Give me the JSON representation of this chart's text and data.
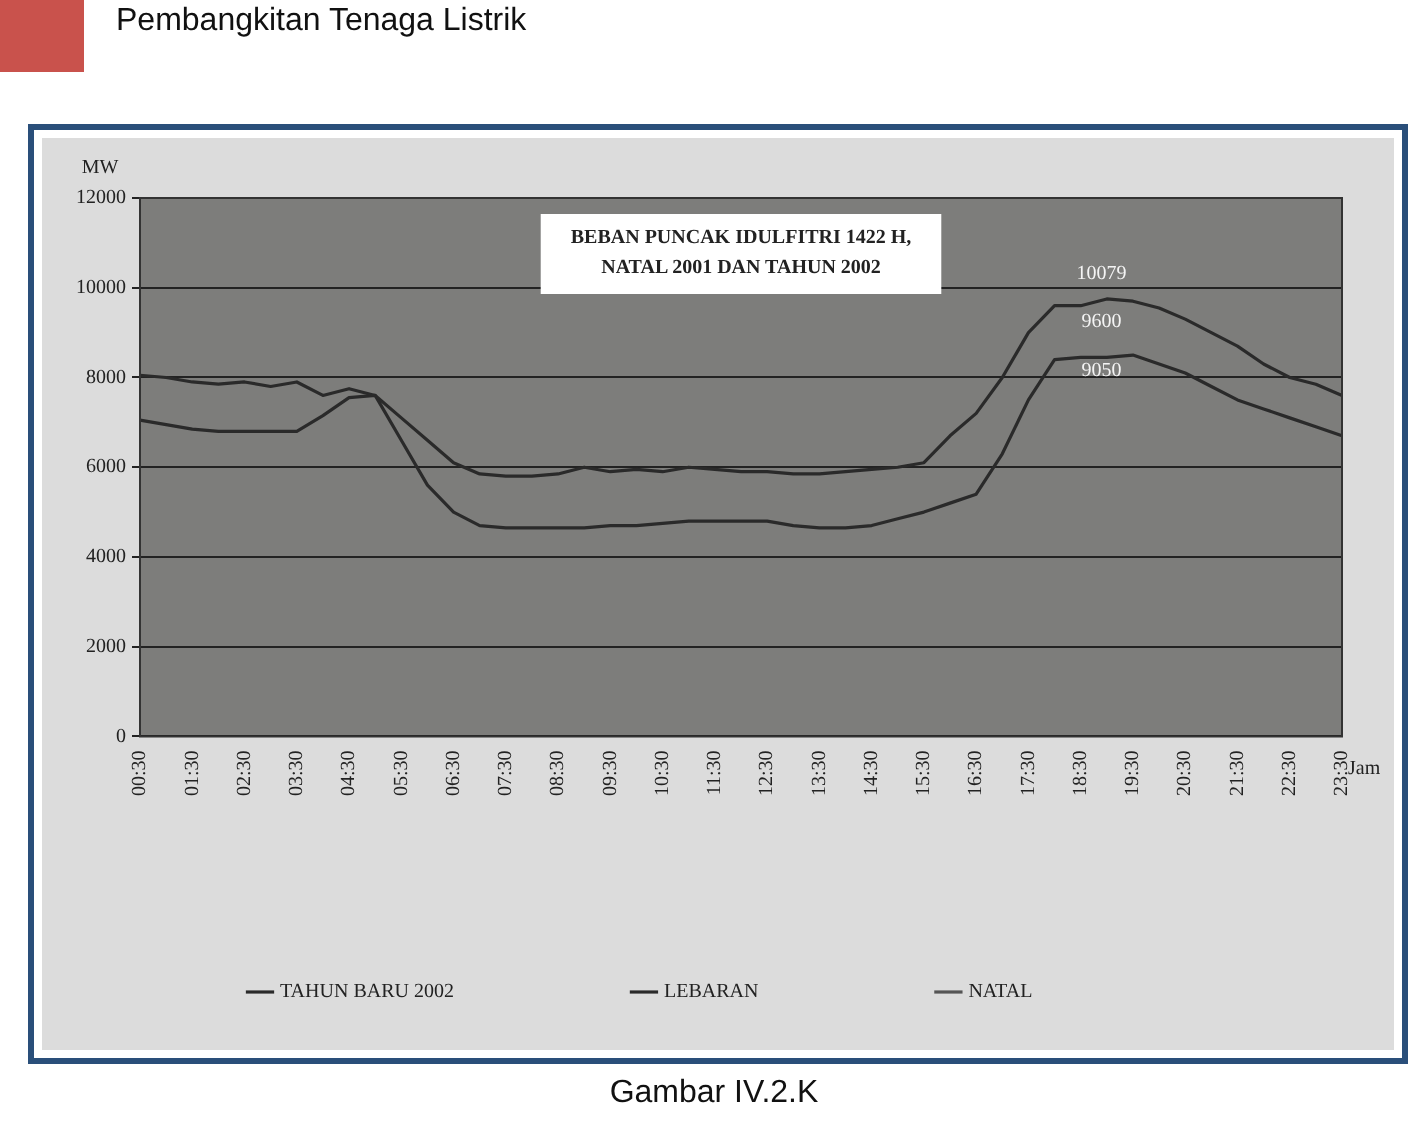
{
  "chart_data": {
    "type": "line",
    "title": "BEBAN PUNCAK IDULFITRI 1422 H,\nNATAL 2001 DAN TAHUN 2002",
    "xlabel": "Jam",
    "ylabel": "MW",
    "categories": [
      "00:30",
      null,
      "01:30",
      null,
      "02:30",
      null,
      "03:30",
      null,
      "04:30",
      null,
      "05:30",
      null,
      "06:30",
      null,
      "07:30",
      null,
      "08:30",
      null,
      "09:30",
      null,
      "10:30",
      null,
      "11:30",
      null,
      "12:30",
      null,
      "13:30",
      null,
      "14:30",
      null,
      "15:30",
      null,
      "16:30",
      null,
      "17:30",
      null,
      "18:30",
      null,
      "19:30",
      null,
      "20:30",
      null,
      "21:30",
      null,
      "22:30",
      null,
      "23:30"
    ],
    "series": [
      {
        "name": "TAHUN BARU 2002",
        "color": "#2a2a2a",
        "values": [
          8050,
          8000,
          7900,
          7850,
          7900,
          7800,
          7900,
          7600,
          7750,
          7600,
          7100,
          6600,
          6100,
          5850,
          5800,
          5800,
          5850,
          6000,
          5900,
          5950,
          5900,
          6000,
          5950,
          5900,
          5900,
          5850,
          5850,
          5900,
          5950,
          6000,
          6100,
          6700,
          7200,
          8000,
          9000,
          9600,
          9600,
          9750,
          9700,
          9550,
          9300,
          9000,
          8700,
          8300,
          8000,
          7850,
          7600
        ]
      },
      {
        "name": "LEBARAN",
        "color": "#2a2a2a",
        "values": [
          7050,
          6950,
          6850,
          6800,
          6800,
          6800,
          6800,
          7150,
          7550,
          7600,
          6600,
          5600,
          5000,
          4700,
          4650,
          4650,
          4650,
          4650,
          4700,
          4700,
          4750,
          4800,
          4800,
          4800,
          4800,
          4700,
          4650,
          4650,
          4700,
          4850,
          5000,
          5200,
          5400,
          6300,
          7500,
          8400,
          8450,
          8450,
          8500,
          8300,
          8100,
          7800,
          7500,
          7300,
          7100,
          6900,
          6700
        ]
      },
      {
        "name": "NATAL",
        "color": "#555555",
        "values": [
          null,
          null,
          null,
          null,
          null,
          null,
          null,
          null,
          null,
          null,
          null,
          null,
          null,
          null,
          null,
          null,
          null,
          null,
          null,
          null,
          null,
          null,
          null,
          null,
          null,
          null,
          null,
          null,
          null,
          null,
          null,
          null,
          null,
          null,
          null,
          null,
          null,
          null,
          null,
          null,
          null,
          null,
          null,
          null,
          null,
          null,
          null
        ]
      }
    ],
    "ylim": [
      0,
      12000
    ],
    "yticks": [
      0,
      2000,
      4000,
      6000,
      8000,
      10000,
      12000
    ],
    "grid": "y",
    "legend": "bottom",
    "marker": "none",
    "line_style": "solid",
    "annotations": [
      "Pembangkitan Tenaga Listrik",
      "Gambar IV.2.K",
      "10079",
      "9600",
      "9050"
    ]
  }
}
